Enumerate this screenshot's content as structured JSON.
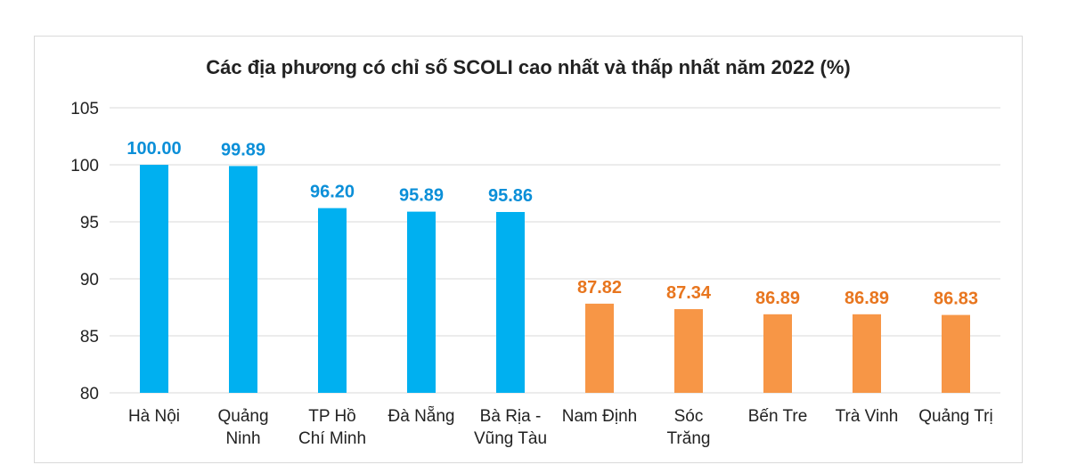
{
  "chart_data": {
    "type": "bar",
    "title": "Các địa phương có chỉ số SCOLI cao nhất và thấp nhất năm 2022 (%)",
    "xlabel": "",
    "ylabel": "",
    "ylim": [
      80,
      105
    ],
    "yticks": [
      "80",
      "85",
      "90",
      "95",
      "100",
      "105"
    ],
    "grid": true,
    "categories": [
      [
        "Hà Nội"
      ],
      [
        "Quảng",
        "Ninh"
      ],
      [
        "TP Hồ",
        "Chí Minh"
      ],
      [
        "Đà Nẵng"
      ],
      [
        "Bà Rịa -",
        "Vũng Tàu"
      ],
      [
        "Nam Định"
      ],
      [
        "Sóc",
        "Trăng"
      ],
      [
        "Bến Tre"
      ],
      [
        "Trà Vinh"
      ],
      [
        "Quảng Trị"
      ]
    ],
    "values": [
      100.0,
      99.89,
      96.2,
      95.89,
      95.86,
      87.82,
      87.34,
      86.89,
      86.89,
      86.83
    ],
    "value_labels": [
      "100.00",
      "99.89",
      "96.20",
      "95.89",
      "95.86",
      "87.82",
      "87.34",
      "86.89",
      "86.89",
      "86.83"
    ],
    "groups": [
      "highest",
      "highest",
      "highest",
      "highest",
      "highest",
      "lowest",
      "lowest",
      "lowest",
      "lowest",
      "lowest"
    ],
    "colors": {
      "highest_bar": "#00b0f0",
      "lowest_bar": "#f79646",
      "highest_label": "#0b8fd8",
      "lowest_label": "#e8761f"
    }
  }
}
